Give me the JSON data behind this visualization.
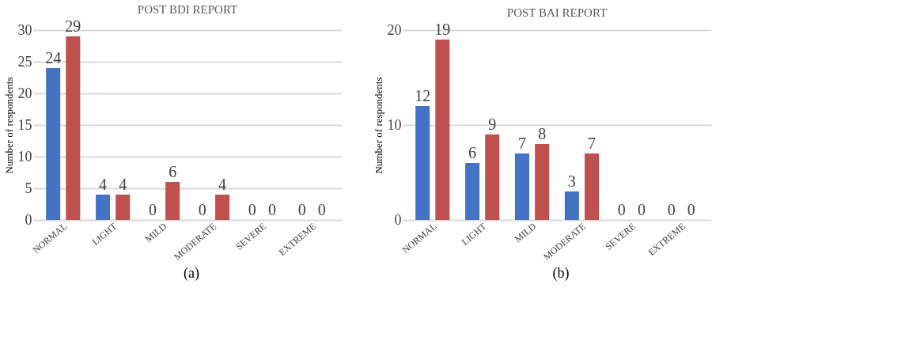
{
  "chart_data": [
    {
      "type": "bar",
      "title": "POST BDI REPORT",
      "ylabel": "Number of respondents",
      "categories": [
        "NORMAL",
        "LIGHT",
        "MILD",
        "MODERATE",
        "SEVERE",
        "EXTREME"
      ],
      "series": [
        {
          "color": "#4472c4",
          "values": [
            24,
            4,
            0,
            0,
            0,
            0
          ]
        },
        {
          "color": "#c0504d",
          "values": [
            29,
            4,
            6,
            4,
            0,
            0
          ]
        }
      ],
      "ylim": [
        0,
        30
      ],
      "yticks": [
        0,
        5,
        10,
        15,
        20,
        25,
        30
      ],
      "grid": "y",
      "legend": false,
      "data_labels": true,
      "annotations": [
        "(a)"
      ]
    },
    {
      "type": "bar",
      "title": "POST BAI REPORT",
      "ylabel": "Number of respondents",
      "categories": [
        "NORMAL",
        "LIGHT",
        "MILD",
        "MODERATE",
        "SEVERE",
        "EXTREME"
      ],
      "series": [
        {
          "color": "#4472c4",
          "values": [
            12,
            6,
            7,
            3,
            0,
            0
          ]
        },
        {
          "color": "#c0504d",
          "values": [
            19,
            9,
            8,
            7,
            0,
            0
          ]
        }
      ],
      "ylim": [
        0,
        20
      ],
      "yticks": [
        0,
        10,
        20
      ],
      "grid": "y",
      "legend": false,
      "data_labels": true,
      "annotations": [
        "(b)"
      ]
    }
  ]
}
